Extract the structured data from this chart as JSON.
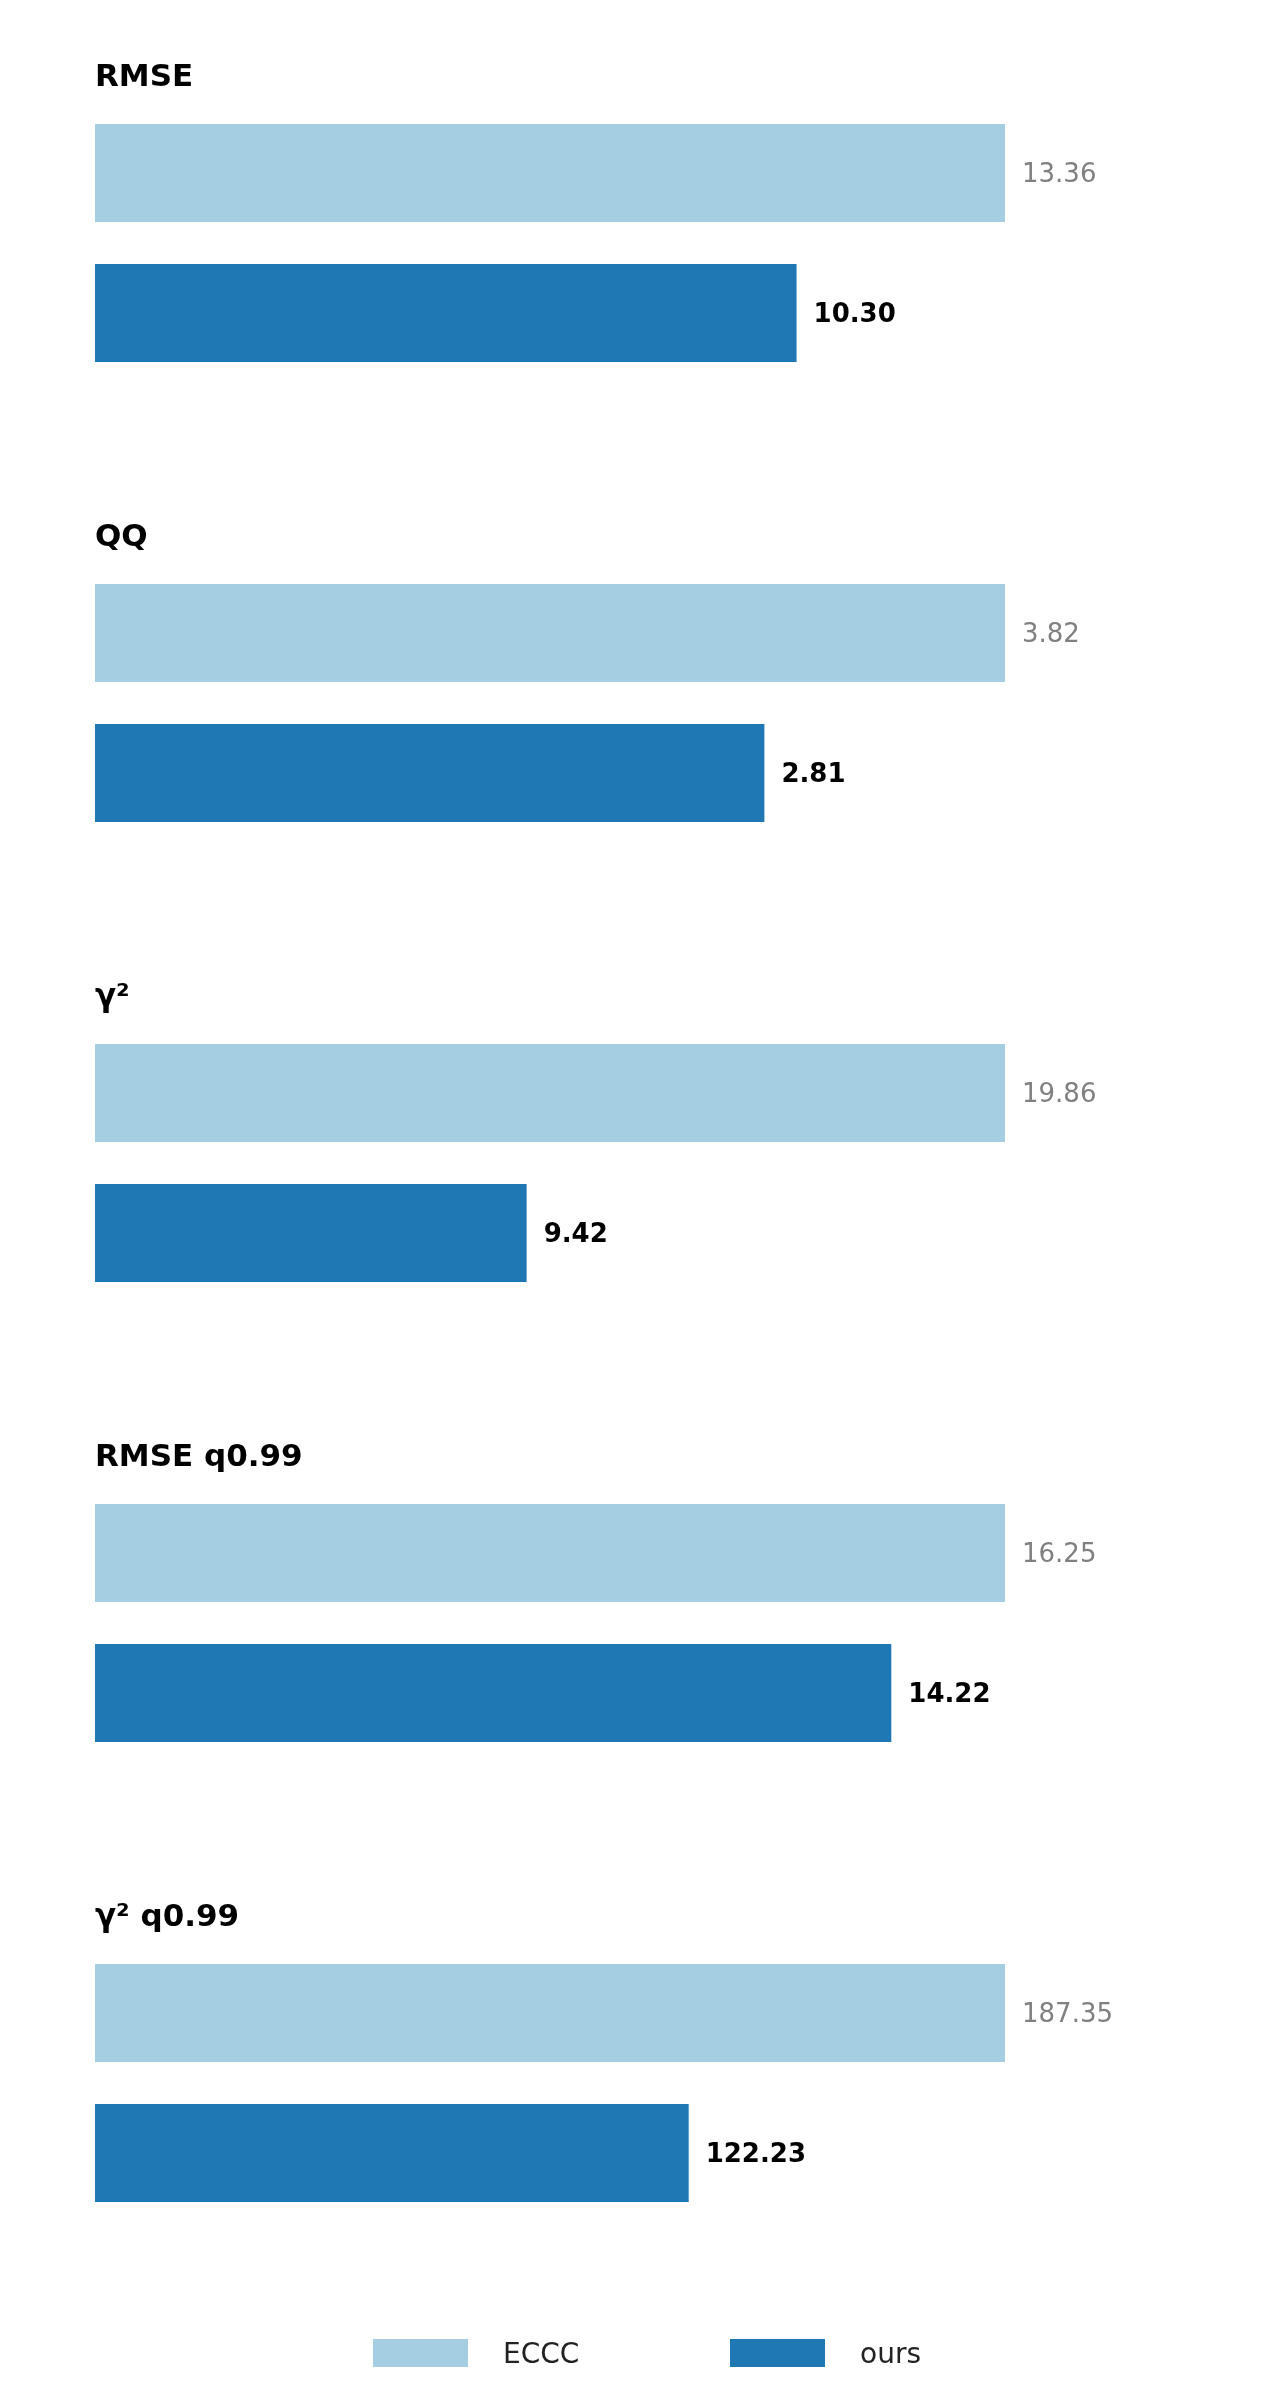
{
  "chart_data": [
    {
      "type": "bar",
      "orientation": "horizontal",
      "title": "RMSE",
      "categories": [
        null
      ],
      "xlim": [
        0,
        13.36
      ],
      "tick_labels": false,
      "data_labels": true,
      "series": [
        {
          "color": "#a6cee3",
          "values": [
            13.36
          ],
          "value_labels": [
            "13.36"
          ]
        },
        {
          "color": "#1f78b4",
          "values": [
            10.3
          ],
          "value_labels": [
            "10.30"
          ]
        }
      ]
    },
    {
      "type": "bar",
      "orientation": "horizontal",
      "title": "QQ",
      "categories": [
        null
      ],
      "xlim": [
        0,
        3.82
      ],
      "tick_labels": false,
      "data_labels": true,
      "series": [
        {
          "color": "#a6cee3",
          "values": [
            3.82
          ],
          "value_labels": [
            "3.82"
          ]
        },
        {
          "color": "#1f78b4",
          "values": [
            2.81
          ],
          "value_labels": [
            "2.81"
          ]
        }
      ]
    },
    {
      "type": "bar",
      "orientation": "horizontal",
      "title": "γ²",
      "categories": [
        null
      ],
      "xlim": [
        0,
        19.86
      ],
      "tick_labels": false,
      "data_labels": true,
      "series": [
        {
          "color": "#a6cee3",
          "values": [
            19.86
          ],
          "value_labels": [
            "19.86"
          ]
        },
        {
          "color": "#1f78b4",
          "values": [
            9.42
          ],
          "value_labels": [
            "9.42"
          ]
        }
      ]
    },
    {
      "type": "bar",
      "orientation": "horizontal",
      "title": "RMSE q0.99",
      "categories": [
        null
      ],
      "xlim": [
        0,
        16.25
      ],
      "tick_labels": false,
      "data_labels": true,
      "series": [
        {
          "color": "#a6cee3",
          "values": [
            16.25
          ],
          "value_labels": [
            "16.25"
          ]
        },
        {
          "color": "#1f78b4",
          "values": [
            14.22
          ],
          "value_labels": [
            "14.22"
          ]
        }
      ]
    },
    {
      "type": "bar",
      "orientation": "horizontal",
      "title": "γ² q0.99",
      "categories": [
        null
      ],
      "xlim": [
        0,
        187.35
      ],
      "tick_labels": false,
      "data_labels": true,
      "legend": "bottom",
      "series": [
        {
          "name": "ECCC",
          "color": "#a6cee3",
          "values": [
            187.35
          ],
          "value_labels": [
            "187.35"
          ]
        },
        {
          "name": "ours",
          "color": "#1f78b4",
          "values": [
            122.23
          ],
          "value_labels": [
            "122.23"
          ]
        }
      ]
    }
  ]
}
